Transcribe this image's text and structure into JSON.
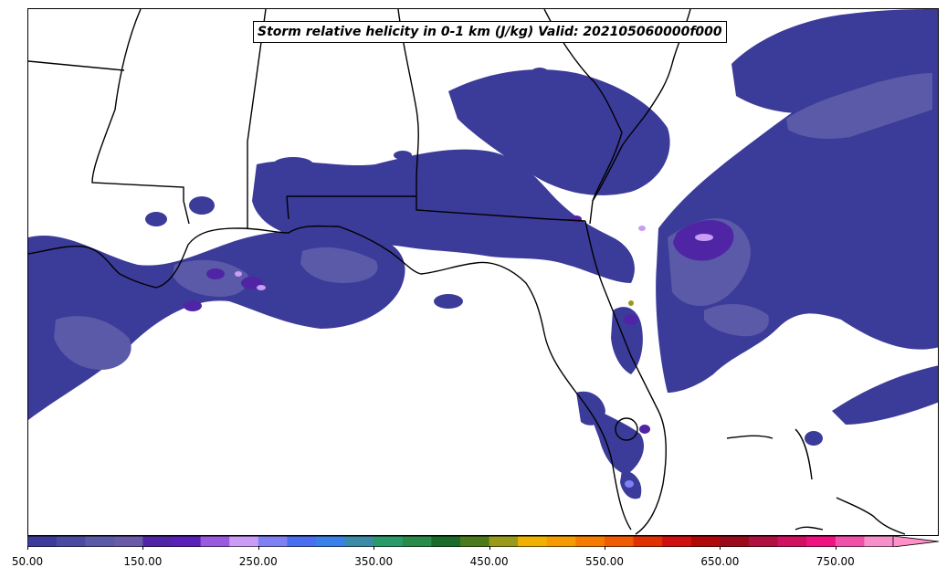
{
  "title": "Storm relative helicity in 0-1 km (J/kg) Valid: 202105060000f000",
  "colorbar": {
    "min": 50,
    "max": 800,
    "step": 25,
    "extend": "max",
    "tick_labels": [
      "50.00",
      "150.00",
      "250.00",
      "350.00",
      "450.00",
      "550.00",
      "650.00",
      "750.00"
    ],
    "colors": [
      "#3b3b9a",
      "#4a4aa0",
      "#5a5aa8",
      "#6a5aa8",
      "#5025a5",
      "#5a1fb8",
      "#9a5ae0",
      "#c99cf5",
      "#8080f5",
      "#4a6ef0",
      "#3a80e8",
      "#3a8aa8",
      "#2a9a6a",
      "#2a8a4a",
      "#1a6a2a",
      "#4a7a1a",
      "#9a9a1a",
      "#f0b000",
      "#f59a00",
      "#f57a00",
      "#f05a00",
      "#e03000",
      "#d01010",
      "#b00808",
      "#9a0a1a",
      "#b01040",
      "#d01060",
      "#f01080",
      "#f050a8",
      "#f590c8"
    ],
    "extend_color": "#ff90c8"
  },
  "map": {
    "region": "Southeastern United States and Gulf of Mexico",
    "features": [
      "coastlines",
      "state borders"
    ],
    "fill_colors": {
      "level_50": "#3b3b9a",
      "level_100": "#5a5aa8",
      "level_150": "#6a5aa8",
      "level_200": "#5025a5",
      "level_250": "#9a5ae0",
      "level_300": "#c99cf5"
    }
  }
}
